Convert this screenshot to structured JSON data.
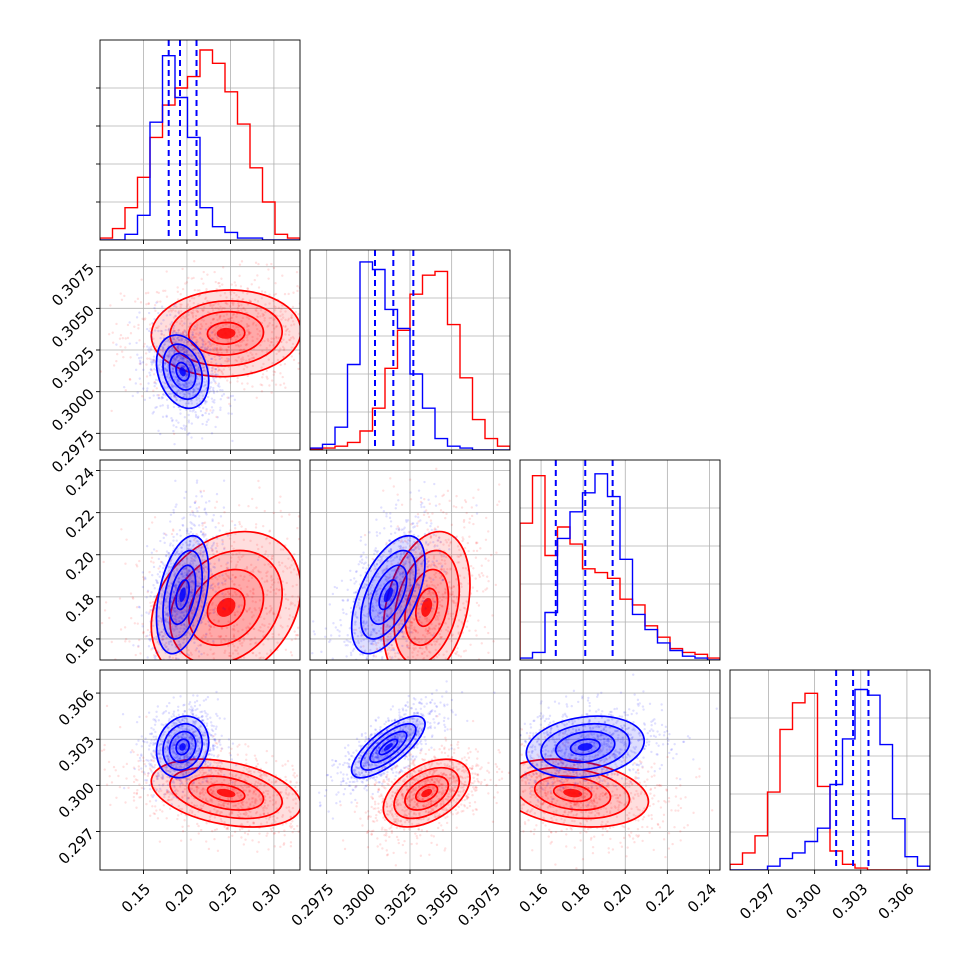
{
  "colors": {
    "blue": "#0000ff",
    "red": "#ff0000",
    "grid": "#b0b0b0"
  },
  "chart_data": {
    "type": "corner",
    "grid": true,
    "parameters": [
      {
        "index": 0,
        "range": [
          0.1,
          0.33
        ],
        "ticks": [
          0.15,
          0.2,
          0.25,
          0.3
        ],
        "tick_labels": [
          "0.15",
          "0.20",
          "0.25",
          "0.30"
        ]
      },
      {
        "index": 1,
        "range": [
          0.2965,
          0.3085
        ],
        "ticks": [
          0.2975,
          0.3,
          0.3025,
          0.305,
          0.3075
        ],
        "tick_labels": [
          "0.2975",
          "0.3000",
          "0.3025",
          "0.3050",
          "0.3075"
        ]
      },
      {
        "index": 2,
        "range": [
          0.15,
          0.245
        ],
        "ticks": [
          0.16,
          0.18,
          0.2,
          0.22,
          0.24
        ],
        "tick_labels": [
          "0.16",
          "0.18",
          "0.20",
          "0.22",
          "0.24"
        ]
      },
      {
        "index": 3,
        "range": [
          0.2945,
          0.3075
        ],
        "ticks": [
          0.297,
          0.3,
          0.303,
          0.306
        ],
        "tick_labels": [
          "0.297",
          "0.300",
          "0.303",
          "0.306"
        ]
      }
    ],
    "series": [
      {
        "color": "red",
        "mean": [
          0.245,
          0.3035,
          0.175,
          0.2995
        ],
        "sigma": [
          0.043,
          0.0013,
          0.018,
          0.0011
        ],
        "correlations": [
          [
            0,
            1,
            0.05
          ],
          [
            0,
            2,
            0.25
          ],
          [
            0,
            3,
            -0.35
          ],
          [
            1,
            2,
            0.3
          ],
          [
            1,
            3,
            0.45
          ],
          [
            2,
            3,
            -0.25
          ]
        ],
        "quantiles": null,
        "histograms": [
          [
            0.01,
            0.06,
            0.17,
            0.33,
            0.54,
            0.71,
            0.8,
            0.86,
            1.0,
            0.93,
            0.78,
            0.61,
            0.38,
            0.2,
            0.03,
            0.01
          ],
          [
            0.005,
            0.01,
            0.02,
            0.04,
            0.1,
            0.22,
            0.43,
            0.63,
            0.82,
            0.92,
            0.94,
            0.66,
            0.38,
            0.16,
            0.06,
            0.02
          ],
          [
            0.72,
            0.97,
            0.55,
            0.7,
            0.61,
            0.48,
            0.46,
            0.43,
            0.32,
            0.29,
            0.18,
            0.12,
            0.06,
            0.04,
            0.03,
            0.01
          ],
          [
            0.03,
            0.09,
            0.18,
            0.41,
            0.74,
            0.88,
            0.93,
            0.44,
            0.1,
            0.03,
            0.01,
            0.0,
            0.0,
            0.0,
            0.0,
            0.0
          ]
        ]
      },
      {
        "color": "blue",
        "mean": [
          0.195,
          0.3012,
          0.181,
          0.3025
        ],
        "sigma": [
          0.015,
          0.0011,
          0.014,
          0.001
        ],
        "correlations": [
          [
            0,
            1,
            -0.25
          ],
          [
            0,
            2,
            0.4
          ],
          [
            0,
            3,
            0.15
          ],
          [
            1,
            2,
            0.55
          ],
          [
            1,
            3,
            0.75
          ],
          [
            2,
            3,
            0.2
          ]
        ],
        "quantiles": [
          [
            0.179,
            0.192,
            0.211
          ],
          [
            0.3004,
            0.3015,
            0.3027
          ],
          [
            0.167,
            0.181,
            0.194
          ],
          [
            0.3014,
            0.3025,
            0.3035
          ]
        ],
        "histograms": [
          [
            0.0,
            0.0,
            0.03,
            0.13,
            0.62,
            0.97,
            0.75,
            0.54,
            0.17,
            0.07,
            0.04,
            0.01,
            0.01,
            0.0,
            0.0,
            0.0
          ],
          [
            0.01,
            0.03,
            0.12,
            0.45,
            0.99,
            0.95,
            0.74,
            0.64,
            0.4,
            0.22,
            0.06,
            0.02,
            0.01,
            0.0,
            0.0,
            0.0
          ],
          [
            0.01,
            0.04,
            0.25,
            0.64,
            0.78,
            0.88,
            0.98,
            0.86,
            0.53,
            0.24,
            0.16,
            0.09,
            0.05,
            0.02,
            0.01,
            0.0
          ],
          [
            0.0,
            0.0,
            0.0,
            0.02,
            0.06,
            0.09,
            0.15,
            0.22,
            0.45,
            0.69,
            0.95,
            0.92,
            0.66,
            0.27,
            0.07,
            0.02
          ]
        ]
      }
    ],
    "contour_levels_sigma": [
      0.5,
      1.0,
      1.5,
      2.0
    ]
  }
}
